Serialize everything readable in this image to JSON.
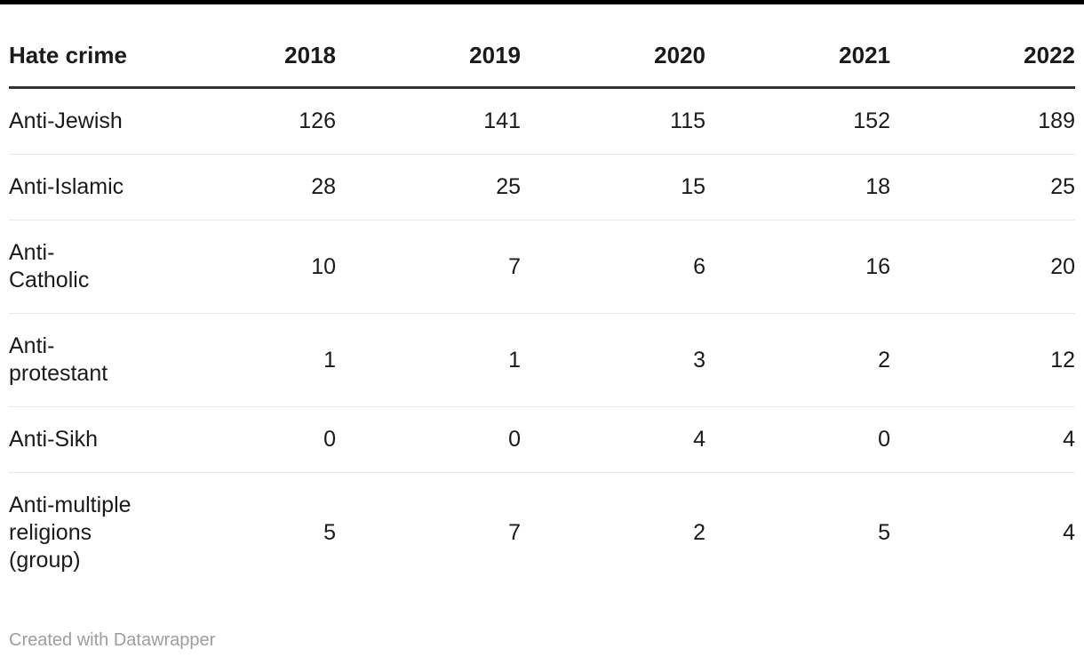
{
  "meta": {
    "top_bar_color": "#000000",
    "text_color": "#1a1a1a",
    "header_rule_color": "#333333",
    "row_separator_color": "#e8e8e8",
    "attribution_color": "#9d9d9d"
  },
  "table": {
    "header": {
      "label": "Hate crime",
      "years": [
        "2018",
        "2019",
        "2020",
        "2021",
        "2022"
      ]
    },
    "rows": [
      {
        "label": "Anti-Jewish",
        "values": [
          "126",
          "141",
          "115",
          "152",
          "189"
        ]
      },
      {
        "label": "Anti-Islamic",
        "values": [
          "28",
          "25",
          "15",
          "18",
          "25"
        ]
      },
      {
        "label": "Anti-\nCatholic",
        "values": [
          "10",
          "7",
          "6",
          "16",
          "20"
        ]
      },
      {
        "label": "Anti-\nprotestant",
        "values": [
          "1",
          "1",
          "3",
          "2",
          "12"
        ]
      },
      {
        "label": "Anti-Sikh",
        "values": [
          "0",
          "0",
          "4",
          "0",
          "4"
        ]
      },
      {
        "label": "Anti-multiple\nreligions\n(group)",
        "values": [
          "5",
          "7",
          "2",
          "5",
          "4"
        ]
      }
    ]
  },
  "footer": {
    "attribution": "Created with Datawrapper"
  },
  "chart_data": {
    "type": "table",
    "title": "Hate crime",
    "categories": [
      "2018",
      "2019",
      "2020",
      "2021",
      "2022"
    ],
    "series": [
      {
        "name": "Anti-Jewish",
        "values": [
          126,
          141,
          115,
          152,
          189
        ]
      },
      {
        "name": "Anti-Islamic",
        "values": [
          28,
          25,
          15,
          18,
          25
        ]
      },
      {
        "name": "Anti-Catholic",
        "values": [
          10,
          7,
          6,
          16,
          20
        ]
      },
      {
        "name": "Anti-protestant",
        "values": [
          1,
          1,
          3,
          2,
          12
        ]
      },
      {
        "name": "Anti-Sikh",
        "values": [
          0,
          0,
          4,
          0,
          4
        ]
      },
      {
        "name": "Anti-multiple religions (group)",
        "values": [
          5,
          7,
          2,
          5,
          4
        ]
      }
    ],
    "attribution": "Created with Datawrapper"
  }
}
